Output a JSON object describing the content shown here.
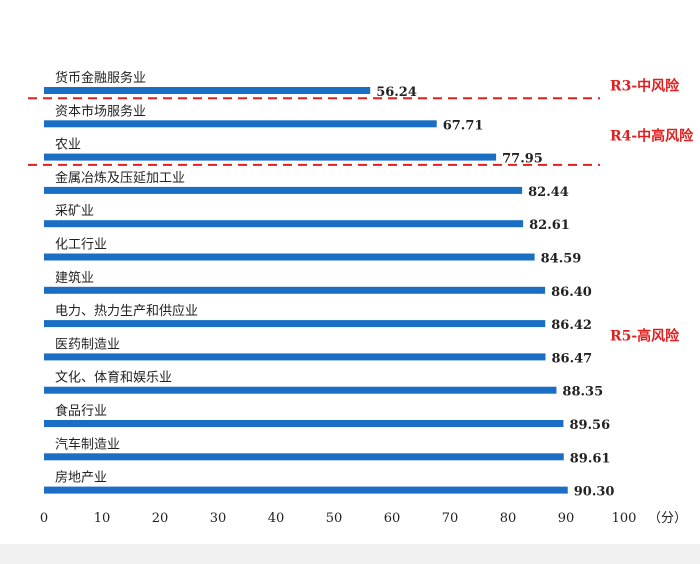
{
  "chart_data": {
    "type": "bar",
    "orientation": "horizontal",
    "categories": [
      "货币金融服务业",
      "资本市场服务业",
      "农业",
      "金属冶炼及压延加工业",
      "采矿业",
      "化工行业",
      "建筑业",
      "电力、热力生产和供应业",
      "医药制造业",
      "文化、体育和娱乐业",
      "食品行业",
      "汽车制造业",
      "房地产业"
    ],
    "values": [
      56.24,
      67.71,
      77.95,
      82.44,
      82.61,
      84.59,
      86.4,
      86.42,
      86.47,
      88.35,
      89.56,
      89.61,
      90.3
    ],
    "value_labels": [
      "56.24",
      "67.71",
      "77.95",
      "82.44",
      "82.61",
      "84.59",
      "86.40",
      "86.42",
      "86.47",
      "88.35",
      "89.56",
      "89.61",
      "90.30"
    ],
    "xlim": [
      0,
      100
    ],
    "xticks": [
      "0",
      "10",
      "20",
      "30",
      "40",
      "50",
      "60",
      "70",
      "80",
      "90",
      "100"
    ],
    "x_unit": "（分）",
    "grid": false,
    "bar_color": "#1a6fc4",
    "zones": [
      {
        "label": "R3-中风险",
        "color": "#e02020",
        "category_indices": [
          0
        ]
      },
      {
        "label": "R4-中高风险",
        "color": "#e02020",
        "category_indices": [
          1,
          2
        ]
      },
      {
        "label": "R5-高风险",
        "color": "#e02020",
        "category_indices": [
          3,
          4,
          5,
          6,
          7,
          8,
          9,
          10,
          11,
          12
        ]
      }
    ]
  }
}
